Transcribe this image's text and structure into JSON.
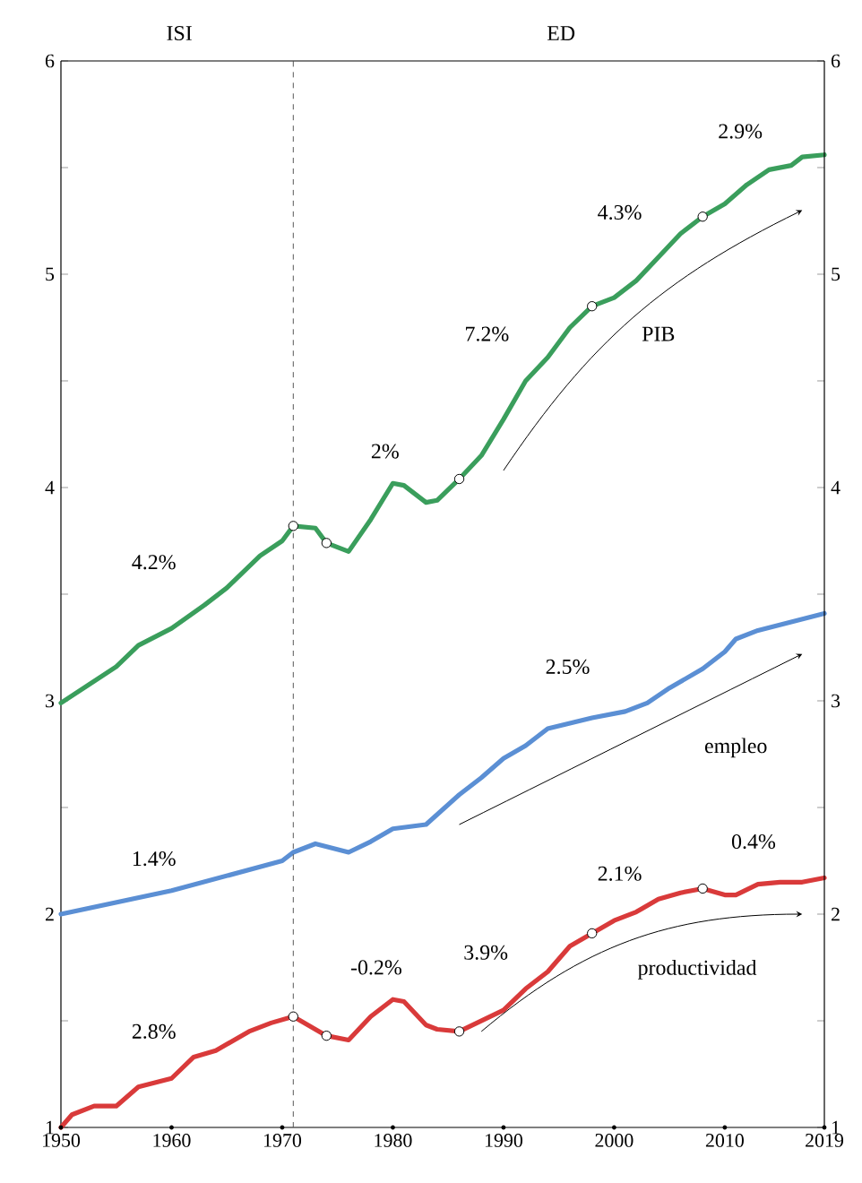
{
  "chart_data": {
    "type": "line",
    "xlim": [
      1950,
      2019
    ],
    "xticks": [
      1950,
      1960,
      1970,
      1980,
      1990,
      2000,
      2010,
      2019
    ],
    "ylim": [
      1,
      6
    ],
    "yticks": [
      1,
      {
        "value": 1.5,
        "label": null
      },
      2,
      {
        "value": 2.5,
        "label": null
      },
      3,
      {
        "value": 3.5,
        "label": null
      },
      4,
      {
        "value": 4.5,
        "label": null
      },
      5,
      {
        "value": 5.5,
        "label": null
      },
      6
    ],
    "y2lim": [
      1,
      6
    ],
    "y2ticks": [
      1,
      {
        "value": 1.5,
        "label": null
      },
      2,
      {
        "value": 2.5,
        "label": null
      },
      3,
      {
        "value": 3.5,
        "label": null
      },
      4,
      {
        "value": 4.5,
        "label": null
      },
      5,
      {
        "value": 5.5,
        "label": null
      },
      6
    ],
    "series": [
      {
        "name": "PIB",
        "color": "#3a9e5c",
        "x": [
          1950,
          1955,
          1957,
          1960,
          1963,
          1965,
          1968,
          1970,
          1971,
          1973,
          1974,
          1976,
          1978,
          1980,
          1981,
          1983,
          1984,
          1986,
          1988,
          1990,
          1992,
          1994,
          1996,
          1998,
          2000,
          2002,
          2004,
          2006,
          2008,
          2010,
          2012,
          2014,
          2016,
          2017,
          2019
        ],
        "values": [
          2.99,
          3.16,
          3.26,
          3.34,
          3.45,
          3.53,
          3.68,
          3.75,
          3.82,
          3.81,
          3.74,
          3.7,
          3.85,
          4.02,
          4.01,
          3.93,
          3.94,
          4.04,
          4.15,
          4.32,
          4.5,
          4.61,
          4.75,
          4.85,
          4.89,
          4.97,
          5.08,
          5.19,
          5.27,
          5.33,
          5.42,
          5.49,
          5.51,
          5.55,
          5.56
        ]
      },
      {
        "name": "empleo",
        "color": "#5b8fd4",
        "x": [
          1950,
          1960,
          1970,
          1971,
          1973,
          1976,
          1978,
          1980,
          1983,
          1986,
          1988,
          1990,
          1992,
          1994,
          1998,
          2001,
          2003,
          2005,
          2008,
          2010,
          2011,
          2013,
          2016,
          2019
        ],
        "values": [
          2.0,
          2.11,
          2.25,
          2.29,
          2.33,
          2.29,
          2.34,
          2.4,
          2.42,
          2.56,
          2.64,
          2.73,
          2.79,
          2.87,
          2.92,
          2.95,
          2.99,
          3.06,
          3.15,
          3.23,
          3.29,
          3.33,
          3.37,
          3.41
        ]
      },
      {
        "name": "productividad",
        "color": "#d93a3a",
        "x": [
          1950,
          1951,
          1953,
          1955,
          1957,
          1960,
          1962,
          1964,
          1967,
          1969,
          1971,
          1974,
          1976,
          1978,
          1980,
          1981,
          1983,
          1984,
          1986,
          1988,
          1990,
          1992,
          1994,
          1996,
          1998,
          2000,
          2002,
          2004,
          2006,
          2008,
          2010,
          2011,
          2013,
          2015,
          2017,
          2019
        ],
        "values": [
          1.0,
          1.06,
          1.1,
          1.1,
          1.19,
          1.23,
          1.33,
          1.36,
          1.45,
          1.49,
          1.52,
          1.43,
          1.41,
          1.52,
          1.6,
          1.59,
          1.48,
          1.46,
          1.45,
          1.5,
          1.55,
          1.65,
          1.73,
          1.85,
          1.91,
          1.97,
          2.01,
          2.07,
          2.1,
          2.12,
          2.09,
          2.09,
          2.14,
          2.15,
          2.15,
          2.17
        ]
      },
      {
        "type": "scatter",
        "marker": "circle",
        "color": "#ffffff",
        "x": [
          1971,
          1974,
          1986,
          1998,
          2008
        ],
        "values": [
          3.82,
          3.74,
          4.04,
          4.85,
          5.27
        ]
      },
      {
        "type": "scatter",
        "marker": "circle",
        "color": "#ffffff",
        "x": [
          1971,
          1974,
          1986,
          1998,
          2008
        ],
        "values": [
          1.52,
          1.43,
          1.45,
          1.91,
          2.12
        ]
      }
    ],
    "ref_lines": [
      {
        "axis": "x",
        "value": 1971,
        "line_style": "dashed",
        "color": "#555555"
      }
    ],
    "annotations": [
      "ISI",
      "ED",
      "4.2%",
      "2%",
      "7.2%",
      "4.3%",
      "2.9%",
      "1.4%",
      "2.5%",
      "2.8%",
      "-0.2%",
      "3.9%",
      "2.1%",
      "0.4%"
    ]
  }
}
